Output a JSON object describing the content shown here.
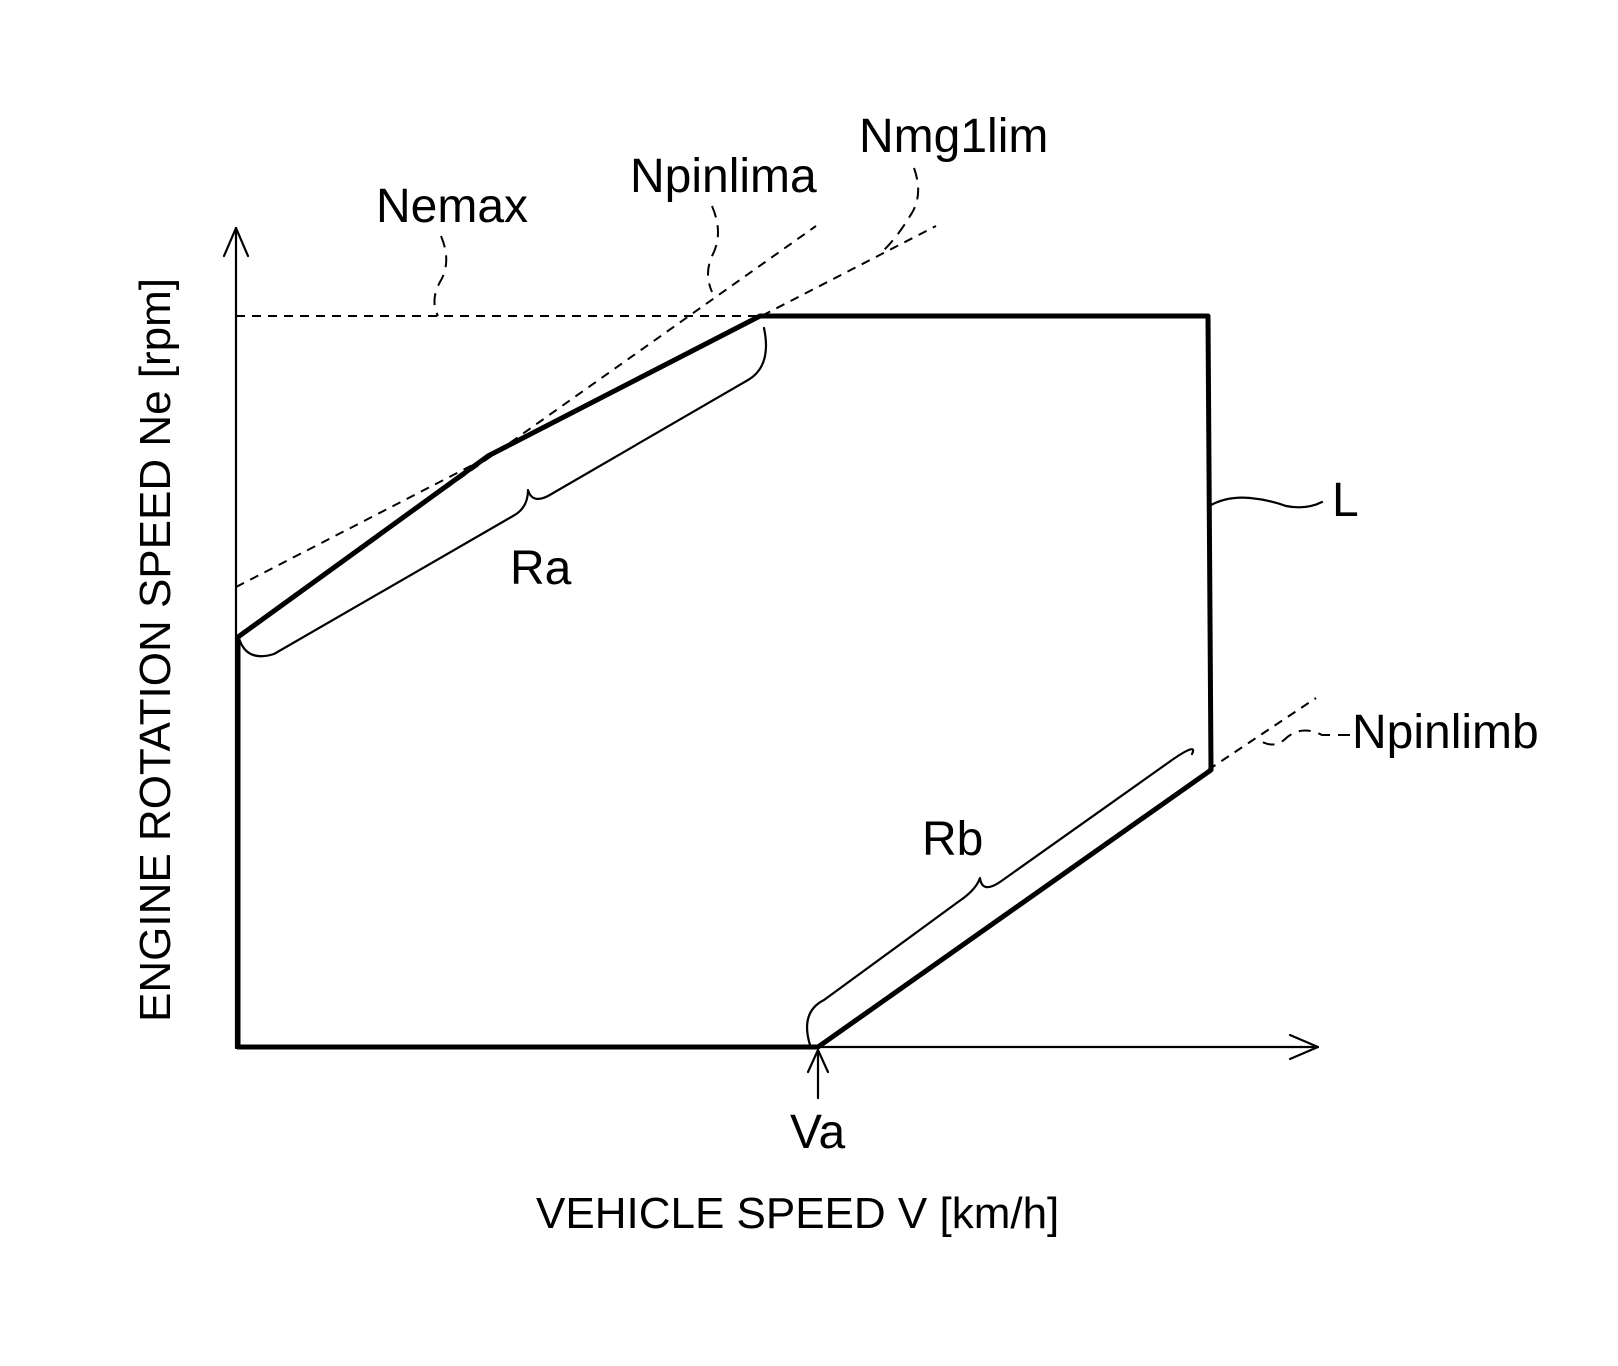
{
  "labels": {
    "nemax": "Nemax",
    "npinlima": "Npinlima",
    "nmg1lim": "Nmg1lim",
    "npinlimb": "Npinlimb",
    "ra": "Ra",
    "rb": "Rb",
    "l": "L",
    "va": "Va"
  },
  "axes": {
    "x_title": "VEHICLE SPEED V [km/h]",
    "y_title": "ENGINE ROTATION SPEED Ne [rpm]"
  }
}
